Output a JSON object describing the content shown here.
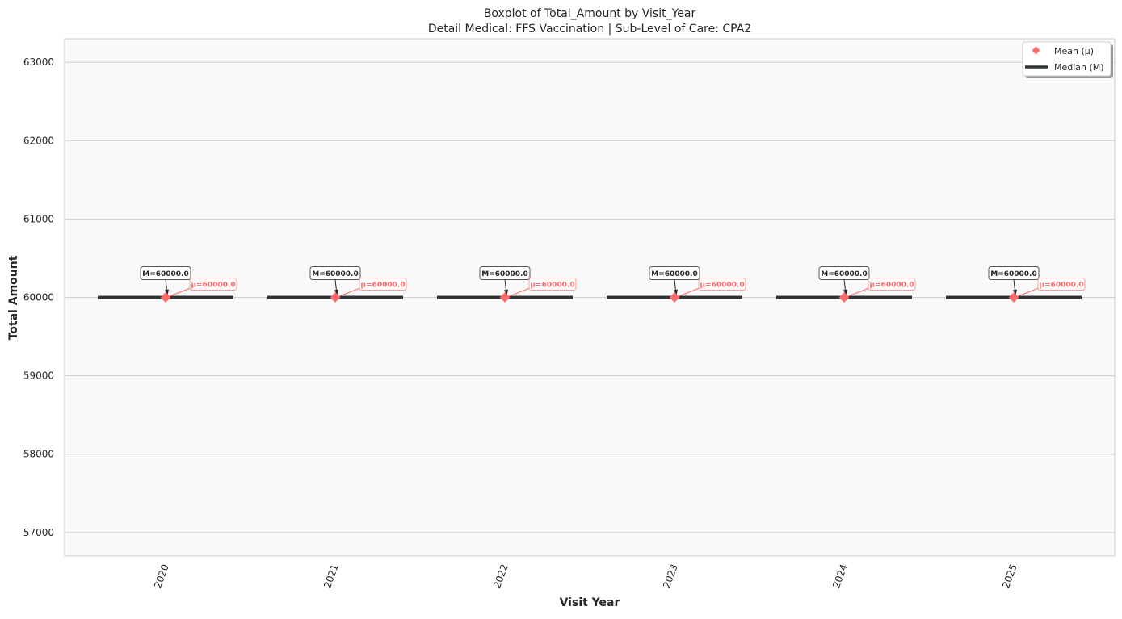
{
  "chart_data": {
    "type": "boxplot",
    "title": "Boxplot of Total_Amount by Visit_Year",
    "subtitle": "Detail Medical: FFS Vaccination | Sub-Level of Care: CPA2",
    "xlabel": "Visit Year",
    "ylabel": "Total Amount",
    "categories": [
      "2020",
      "2021",
      "2022",
      "2023",
      "2024",
      "2025"
    ],
    "median": [
      60000.0,
      60000.0,
      60000.0,
      60000.0,
      60000.0,
      60000.0
    ],
    "mean": [
      60000.0,
      60000.0,
      60000.0,
      60000.0,
      60000.0,
      60000.0
    ],
    "median_labels": [
      "M=60000.0",
      "M=60000.0",
      "M=60000.0",
      "M=60000.0",
      "M=60000.0",
      "M=60000.0"
    ],
    "mean_labels": [
      "μ=60000.0",
      "μ=60000.0",
      "μ=60000.0",
      "μ=60000.0",
      "μ=60000.0",
      "μ=60000.0"
    ],
    "ylim": [
      56700,
      63300
    ],
    "yticks": [
      57000,
      58000,
      59000,
      60000,
      61000,
      62000,
      63000
    ],
    "grid": true,
    "legend_position": "top-right",
    "legend": [
      {
        "label": "Mean (μ)",
        "marker": "diamond"
      },
      {
        "label": "Median (M)",
        "marker": "line"
      }
    ],
    "colors": {
      "mean": "#ff6b6b",
      "median": "#2f3436",
      "plot_bg": "#f9f9f9",
      "grid": "#cccccc",
      "text": "#262626"
    }
  }
}
